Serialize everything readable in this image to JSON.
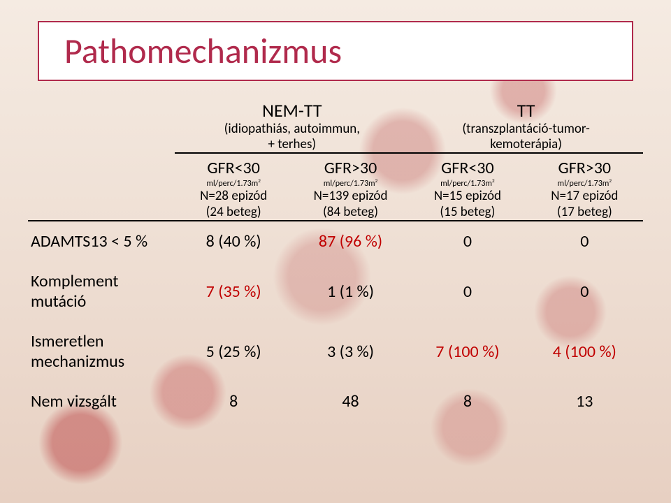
{
  "title": "Pathomechanizmus",
  "groups": {
    "left": {
      "name": "NEM-TT",
      "sub1": "(idiopathiás, autoimmun,",
      "sub2": "+ terhes)"
    },
    "right": {
      "name": "TT",
      "sub1": "(transzplantáció-tumor-",
      "sub2": "kemoterápia)"
    }
  },
  "unit_html": "ml/perc/1.73m²",
  "columns": [
    {
      "gfr": "GFR<30",
      "n": "N=28 epizód",
      "p": "(24 beteg)"
    },
    {
      "gfr": "GFR>30",
      "n": "N=139 epizód",
      "p": "(84 beteg)"
    },
    {
      "gfr": "GFR<30",
      "n": "N=15 epizód",
      "p": "(15 beteg)"
    },
    {
      "gfr": "GFR>30",
      "n": "N=17 epizód",
      "p": "(17 beteg)"
    }
  ],
  "rows": [
    {
      "label": "ADAMTS13 < 5 %",
      "cells": [
        "8 (40 %)",
        "87 (96 %)",
        "0",
        "0"
      ],
      "hl": [
        0,
        1,
        0,
        0
      ]
    },
    {
      "label": "Komplement\nmutáció",
      "cells": [
        "7 (35 %)",
        "1 (1 %)",
        "0",
        "0"
      ],
      "hl": [
        1,
        0,
        0,
        0
      ]
    },
    {
      "label": "Ismeretlen\nmechanizmus",
      "cells": [
        "5 (25 %)",
        "3 (3 %)",
        "7 (100 %)",
        "4 (100 %)"
      ],
      "hl": [
        0,
        0,
        1,
        1
      ]
    },
    {
      "label": "Nem vizsgált",
      "cells": [
        "8",
        "48",
        "8",
        "13"
      ],
      "hl": [
        0,
        0,
        0,
        0
      ]
    }
  ],
  "colors": {
    "title": "#b02a4c",
    "title_border": "#b02a4c",
    "highlight": "#c00000",
    "text": "#000000",
    "rule": "#000000",
    "box_bg": "#ffffff"
  },
  "fonts": {
    "title_size": 50,
    "group_name_size": 26,
    "group_sub_size": 19,
    "col_gfr_size": 24,
    "col_unit_size": 12,
    "col_n_size": 19,
    "rowlabel_size": 24,
    "cell_size": 24
  }
}
